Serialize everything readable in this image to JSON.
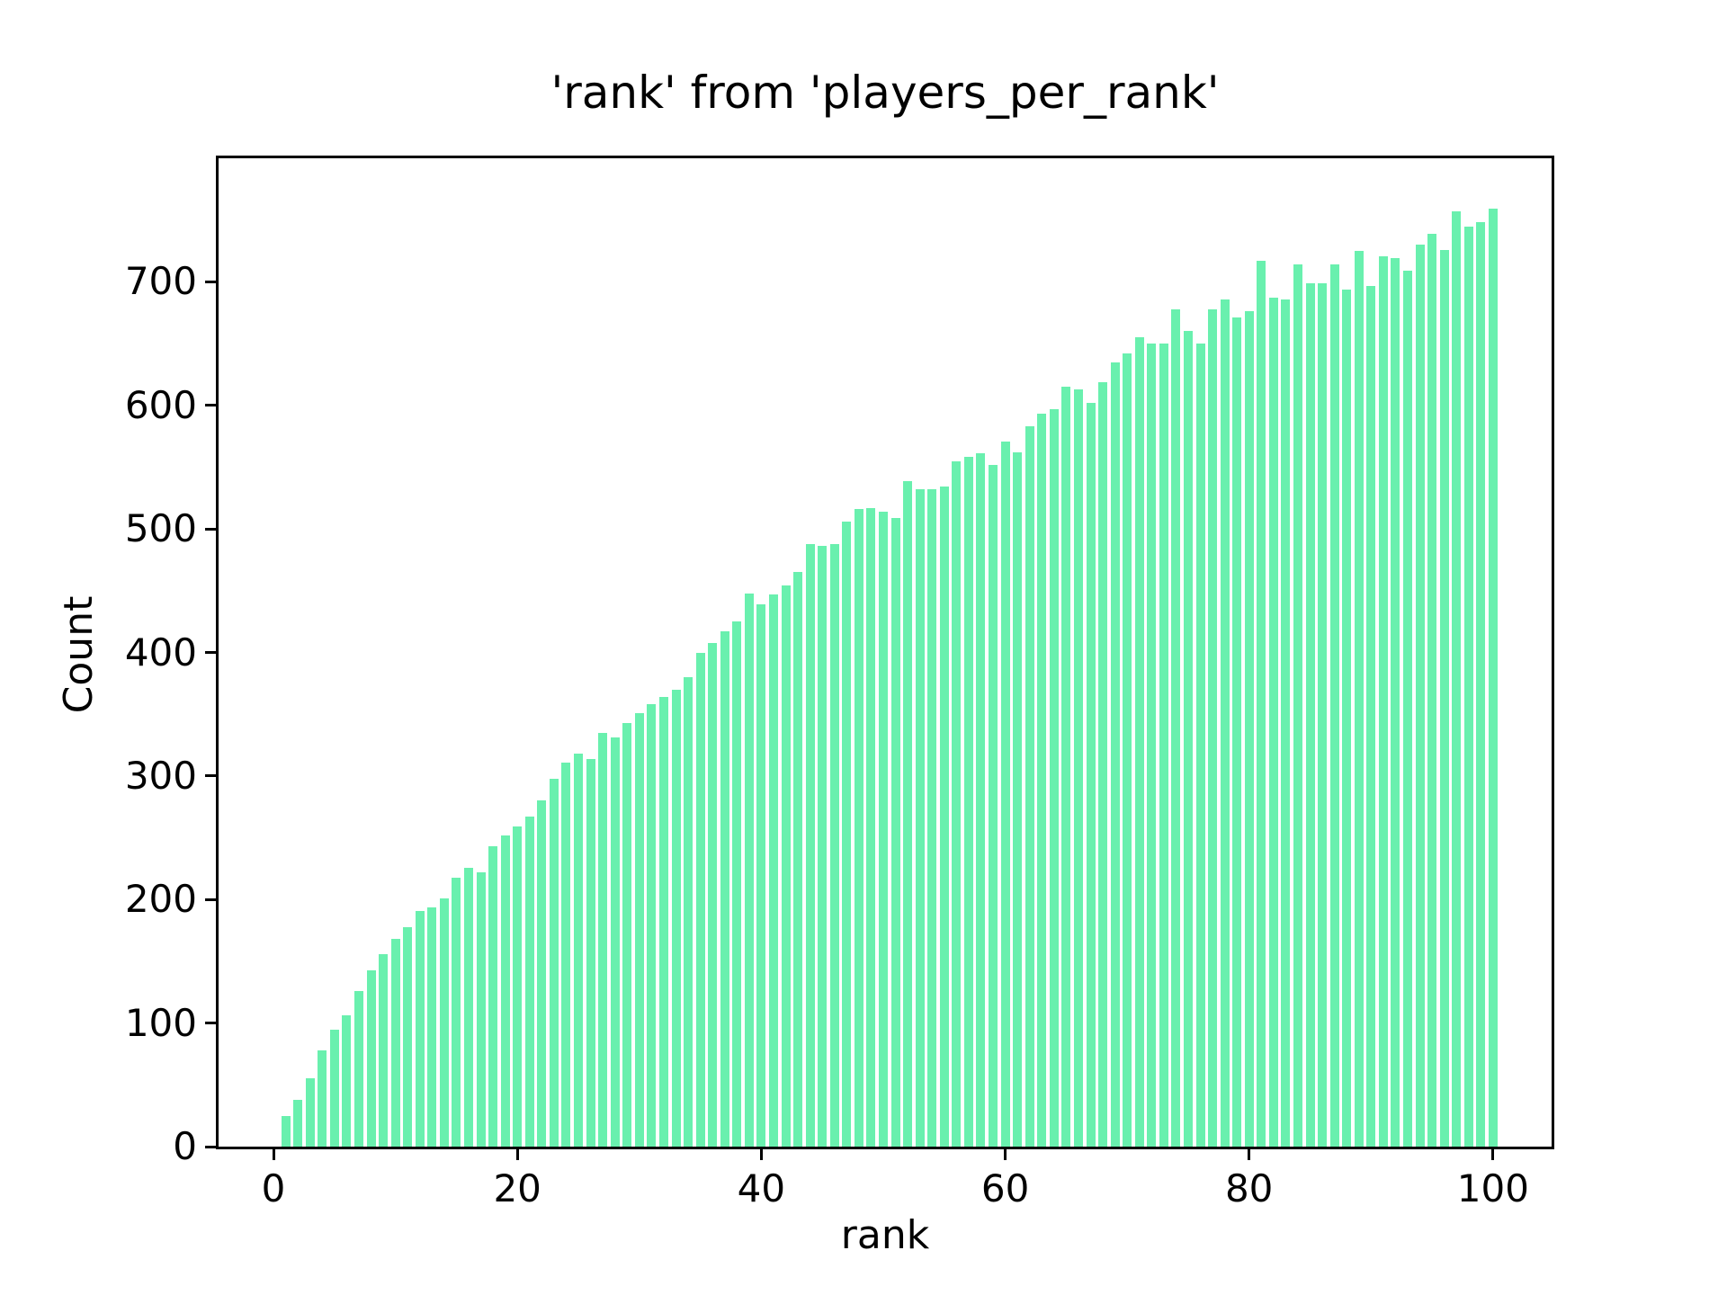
{
  "figure": {
    "background_color": "#ffffff",
    "text_color": "#000000",
    "spine_color": "#000000"
  },
  "chart_data": {
    "type": "bar",
    "title": "'rank' from 'players_per_rank'",
    "xlabel": "rank",
    "ylabel": "Count",
    "bar_color": "#69f0ae",
    "grid": false,
    "legend": null,
    "xlim": [
      -4.5,
      104.8
    ],
    "ylim": [
      0,
      800
    ],
    "xticks": [
      0,
      20,
      40,
      60,
      80,
      100
    ],
    "yticks": [
      0,
      100,
      200,
      300,
      400,
      500,
      600,
      700
    ],
    "bar_width_units": 0.72,
    "x": [
      1,
      2,
      3,
      4,
      5,
      6,
      7,
      8,
      9,
      10,
      11,
      12,
      13,
      14,
      15,
      16,
      17,
      18,
      19,
      20,
      21,
      22,
      23,
      24,
      25,
      26,
      27,
      28,
      29,
      30,
      31,
      32,
      33,
      34,
      35,
      36,
      37,
      38,
      39,
      40,
      41,
      42,
      43,
      44,
      45,
      46,
      47,
      48,
      49,
      50,
      51,
      52,
      53,
      54,
      55,
      56,
      57,
      58,
      59,
      60,
      61,
      62,
      63,
      64,
      65,
      66,
      67,
      68,
      69,
      70,
      71,
      72,
      73,
      74,
      75,
      76,
      77,
      78,
      79,
      80,
      81,
      82,
      83,
      84,
      85,
      86,
      87,
      88,
      89,
      90,
      91,
      92,
      93,
      94,
      95,
      96,
      97,
      98,
      99,
      100
    ],
    "values": [
      25,
      38,
      55,
      78,
      95,
      106,
      126,
      143,
      156,
      168,
      178,
      191,
      194,
      201,
      218,
      226,
      222,
      243,
      252,
      259,
      267,
      280,
      298,
      311,
      318,
      314,
      335,
      331,
      343,
      351,
      358,
      364,
      370,
      380,
      400,
      408,
      417,
      425,
      448,
      439,
      447,
      454,
      465,
      488,
      486,
      488,
      506,
      516,
      517,
      514,
      509,
      539,
      532,
      532,
      534,
      555,
      558,
      561,
      552,
      571,
      562,
      583,
      593,
      597,
      615,
      613,
      602,
      619,
      635,
      642,
      655,
      650,
      650,
      678,
      660,
      650,
      678,
      686,
      671,
      676,
      717,
      687,
      686,
      714,
      699,
      699,
      714,
      694,
      725,
      697,
      721,
      719,
      709,
      730,
      739,
      726,
      757,
      745,
      748,
      759
    ]
  }
}
